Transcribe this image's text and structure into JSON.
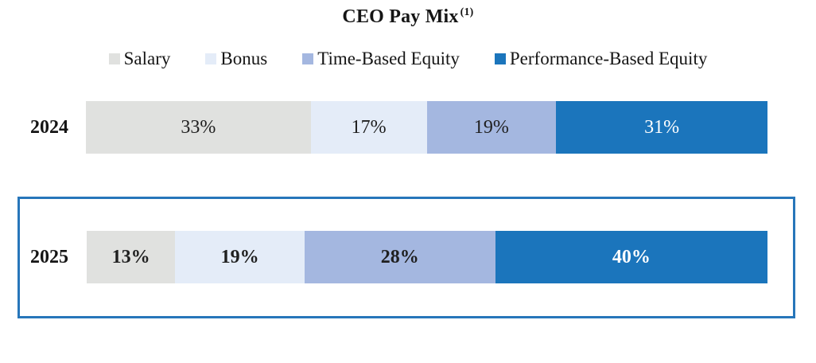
{
  "chart_data": {
    "type": "bar",
    "subtype": "horizontal-stacked",
    "title": "CEO Pay Mix",
    "title_superscript": "(1)",
    "legend_position": "top",
    "categories": [
      "Salary",
      "Bonus",
      "Time-Based Equity",
      "Performance-Based Equity"
    ],
    "colors": [
      "#e0e1df",
      "#e4ecf8",
      "#a4b7e0",
      "#1b75bc"
    ],
    "label_colors": [
      "#1f1f1f",
      "#1f1f1f",
      "#1f1f1f",
      "#ffffff"
    ],
    "xlim": [
      0,
      100
    ],
    "rows": [
      {
        "year": "2024",
        "values": [
          33,
          17,
          19,
          31
        ],
        "labels": [
          "33%",
          "17%",
          "19%",
          "31%"
        ],
        "bold_labels": false,
        "highlighted": false
      },
      {
        "year": "2025",
        "values": [
          13,
          19,
          28,
          40
        ],
        "labels": [
          "13%",
          "19%",
          "28%",
          "40%"
        ],
        "bold_labels": true,
        "highlighted": true
      }
    ],
    "highlight_border_color": "#2776ba"
  }
}
